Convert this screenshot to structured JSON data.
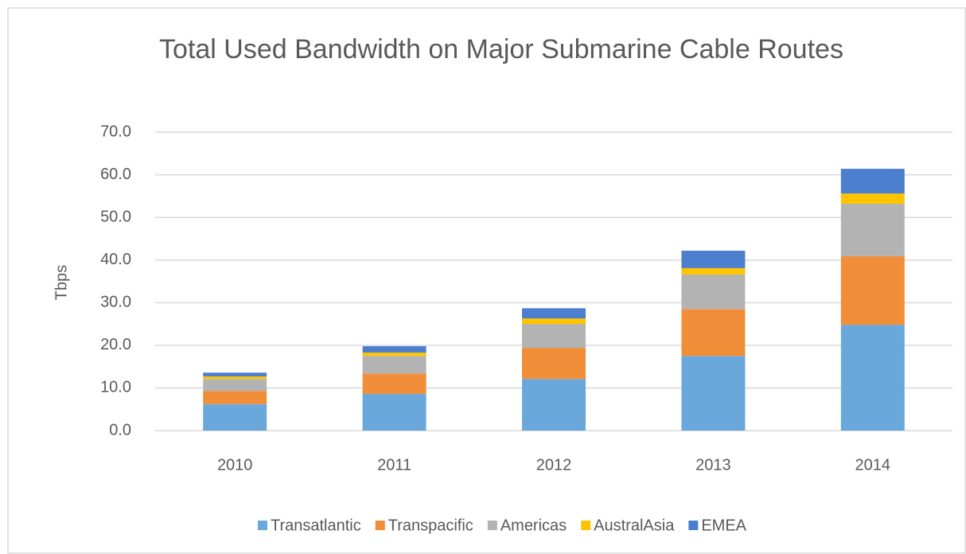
{
  "chart_data": {
    "type": "bar",
    "stacked": true,
    "title": "Total Used Bandwidth on Major Submarine Cable Routes",
    "y_label": "Tbps",
    "categories": [
      "2010",
      "2011",
      "2012",
      "2013",
      "2014"
    ],
    "series": [
      {
        "name": "Transatlantic",
        "color": "#6aa8dc",
        "values": [
          6.2,
          8.6,
          12.1,
          17.5,
          24.8
        ]
      },
      {
        "name": "Transpacific",
        "color": "#f08e3a",
        "values": [
          3.1,
          4.8,
          7.3,
          11.0,
          16.1
        ]
      },
      {
        "name": "Americas",
        "color": "#b3b3b3",
        "values": [
          2.8,
          4.1,
          5.6,
          8.1,
          12.3
        ]
      },
      {
        "name": "AustralAsia",
        "color": "#ffc400",
        "values": [
          0.6,
          0.8,
          1.3,
          1.5,
          2.4
        ]
      },
      {
        "name": "EMEA",
        "color": "#4d7fcf",
        "values": [
          0.9,
          1.5,
          2.4,
          4.1,
          5.8
        ]
      }
    ],
    "ylim": [
      0,
      70
    ],
    "yticks": [
      {
        "value": 0,
        "label": "0.0"
      },
      {
        "value": 10,
        "label": "10.0"
      },
      {
        "value": 20,
        "label": "20.0"
      },
      {
        "value": 30,
        "label": "30.0"
      },
      {
        "value": 40,
        "label": "40.0"
      },
      {
        "value": 50,
        "label": "50.0"
      },
      {
        "value": 60,
        "label": "60.0"
      },
      {
        "value": 70,
        "label": "70.0"
      }
    ],
    "grid": true,
    "legend": "bottom"
  }
}
